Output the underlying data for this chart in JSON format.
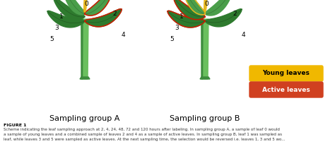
{
  "bg_color": "#ffffff",
  "title_a": "Sampling group A",
  "title_b": "Sampling group B",
  "figure_label": "FIGURE 1",
  "caption_line1": "Scheme indicating the leaf sampling approach at 2, 4, 24, 48, 72 and 120 hours after labeling. In sampling group A, a sample of leaf 0 would",
  "caption_line2": "a sample of young leaves and a combined sample of leaves 2 and 4 as a sample of active leaves. In sampling group B, leaf 1 was sampled as",
  "caption_line3": "leaf, while leaves 3 and 5 were sampled as active leaves. At the next sampling time, the selection would be reversed i.e. leaves 1, 3 and 5 wo...",
  "legend_young_color": "#f0b800",
  "legend_active_color": "#d04020",
  "legend_young_text": "Young leaves",
  "legend_active_text": "Active leaves",
  "trunk_color_light": "#6abf5e",
  "trunk_color_dark": "#3d8c3d",
  "leaf_green_mid": "#4a9e4a",
  "leaf_green_dark": "#2e7a2e",
  "leaf_green_light": "#5cb85c",
  "young_leaf_color": "#e8b820",
  "young_leaf_color2": "#c8960a",
  "red_outline_color": "#cc1a00",
  "label_fontsize": 6.5,
  "title_fontsize": 8,
  "caption_fontsize": 4.0
}
